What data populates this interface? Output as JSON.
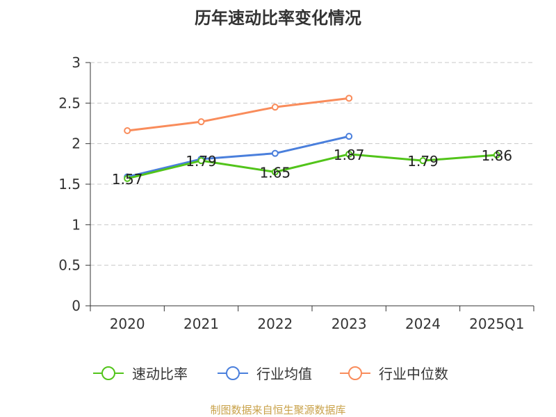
{
  "chart_data": {
    "type": "line",
    "title": "历年速动比率变化情况",
    "categories": [
      "2020",
      "2021",
      "2022",
      "2023",
      "2024",
      "2025Q1"
    ],
    "ylim": [
      0,
      3
    ],
    "yticks": [
      "0",
      "0.5",
      "1",
      "1.5",
      "2",
      "2.5",
      "3"
    ],
    "grid": true,
    "legend_position": "bottom",
    "series": [
      {
        "name": "速动比率",
        "color": "#52c41a",
        "values": [
          1.57,
          1.79,
          1.65,
          1.87,
          1.79,
          1.86
        ],
        "labels": [
          "1.57",
          "1.79",
          "1.65",
          "1.87",
          "1.79",
          "1.86"
        ]
      },
      {
        "name": "行业均值",
        "color": "#4a7fdc",
        "values": [
          1.59,
          1.81,
          1.88,
          2.09,
          null,
          null
        ]
      },
      {
        "name": "行业中位数",
        "color": "#f98c5b",
        "values": [
          2.16,
          2.27,
          2.45,
          2.56,
          null,
          null
        ]
      }
    ]
  },
  "source_note": "制图数据来自恒生聚源数据库"
}
